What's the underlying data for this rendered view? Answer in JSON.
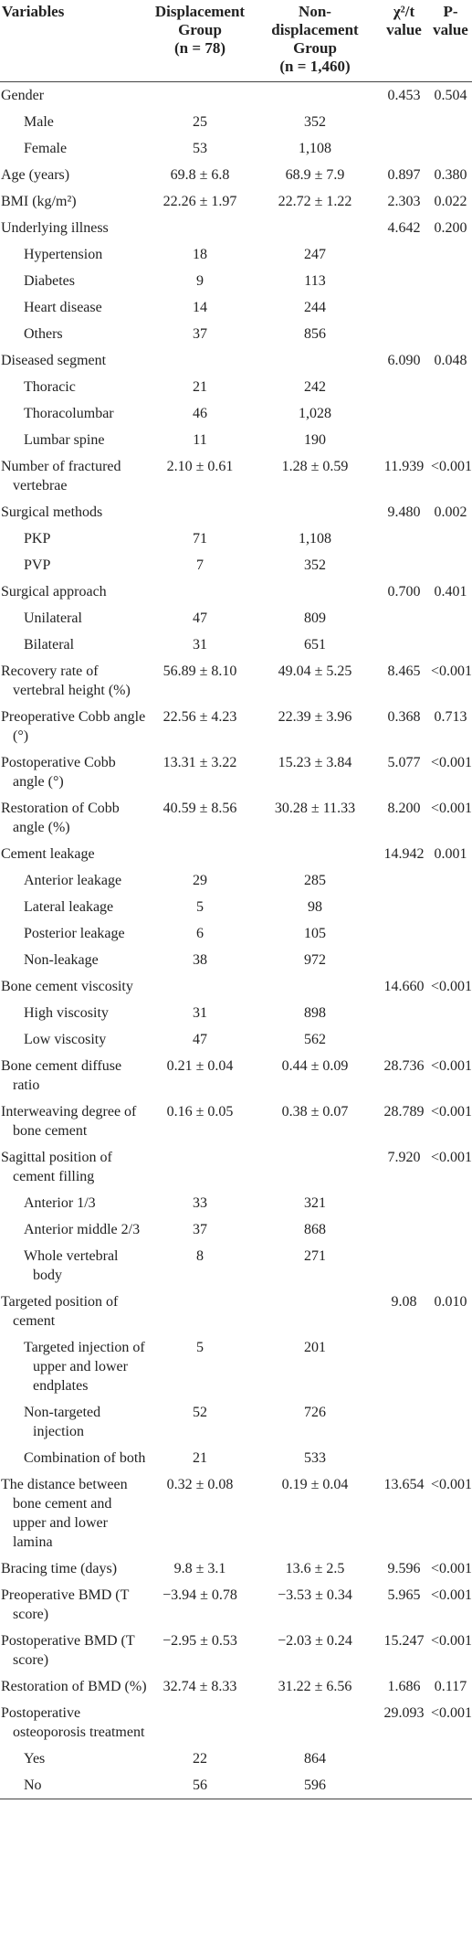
{
  "table": {
    "header": {
      "variables": [
        "Variables"
      ],
      "displacement": [
        "Displacement",
        "Group",
        "(n = 78)"
      ],
      "non_displacement": [
        "Non-",
        "displacement",
        "Group",
        "(n = 1,460)"
      ],
      "statistic": [
        "χ²/t",
        "value"
      ],
      "p_value": [
        "P-value"
      ]
    },
    "rows": [
      {
        "label": "Gender",
        "statistic": "0.453",
        "p_value": "0.504",
        "levels": [
          {
            "label": "Male",
            "displacement": "25",
            "non_displacement": "352"
          },
          {
            "label": "Female",
            "displacement": "53",
            "non_displacement": "1,108"
          }
        ]
      },
      {
        "label": "Age (years)",
        "displacement": "69.8 ± 6.8",
        "non_displacement": "68.9 ± 7.9",
        "statistic": "0.897",
        "p_value": "0.380"
      },
      {
        "label": "BMI (kg/m²)",
        "displacement": "22.26 ± 1.97",
        "non_displacement": "22.72 ± 1.22",
        "statistic": "2.303",
        "p_value": "0.022"
      },
      {
        "label": "Underlying illness",
        "statistic": "4.642",
        "p_value": "0.200",
        "levels": [
          {
            "label": "Hypertension",
            "displacement": "18",
            "non_displacement": "247"
          },
          {
            "label": "Diabetes",
            "displacement": "9",
            "non_displacement": "113"
          },
          {
            "label": "Heart disease",
            "displacement": "14",
            "non_displacement": "244"
          },
          {
            "label": "Others",
            "displacement": "37",
            "non_displacement": "856"
          }
        ]
      },
      {
        "label": "Diseased segment",
        "statistic": "6.090",
        "p_value": "0.048",
        "levels": [
          {
            "label": "Thoracic",
            "displacement": "21",
            "non_displacement": "242"
          },
          {
            "label": "Thoracolumbar",
            "displacement": "46",
            "non_displacement": "1,028"
          },
          {
            "label": "Lumbar spine",
            "displacement": "11",
            "non_displacement": "190"
          }
        ]
      },
      {
        "label": "Number of fractured vertebrae",
        "displacement": "2.10 ± 0.61",
        "non_displacement": "1.28 ± 0.59",
        "statistic": "11.939",
        "p_value": "<0.001"
      },
      {
        "label": "Surgical methods",
        "statistic": "9.480",
        "p_value": "0.002",
        "levels": [
          {
            "label": "PKP",
            "displacement": "71",
            "non_displacement": "1,108"
          },
          {
            "label": "PVP",
            "displacement": "7",
            "non_displacement": "352"
          }
        ]
      },
      {
        "label": "Surgical approach",
        "statistic": "0.700",
        "p_value": "0.401",
        "levels": [
          {
            "label": "Unilateral",
            "displacement": "47",
            "non_displacement": "809"
          },
          {
            "label": "Bilateral",
            "displacement": "31",
            "non_displacement": "651"
          }
        ]
      },
      {
        "label": "Recovery rate of vertebral height (%)",
        "displacement": "56.89 ± 8.10",
        "non_displacement": "49.04 ± 5.25",
        "statistic": "8.465",
        "p_value": "<0.001"
      },
      {
        "label": "Preoperative Cobb angle (°)",
        "displacement": "22.56 ± 4.23",
        "non_displacement": "22.39 ± 3.96",
        "statistic": "0.368",
        "p_value": "0.713"
      },
      {
        "label": "Postoperative Cobb angle (°)",
        "displacement": "13.31 ± 3.22",
        "non_displacement": "15.23 ± 3.84",
        "statistic": "5.077",
        "p_value": "<0.001"
      },
      {
        "label": "Restoration of Cobb angle (%)",
        "displacement": "40.59 ± 8.56",
        "non_displacement": "30.28 ± 11.33",
        "statistic": "8.200",
        "p_value": "<0.001"
      },
      {
        "label": "Cement leakage",
        "statistic": "14.942",
        "p_value": "0.001",
        "levels": [
          {
            "label": "Anterior leakage",
            "displacement": "29",
            "non_displacement": "285"
          },
          {
            "label": "Lateral leakage",
            "displacement": "5",
            "non_displacement": "98"
          },
          {
            "label": "Posterior leakage",
            "displacement": "6",
            "non_displacement": "105"
          },
          {
            "label": "Non-leakage",
            "displacement": "38",
            "non_displacement": "972"
          }
        ]
      },
      {
        "label": "Bone cement viscosity",
        "statistic": "14.660",
        "p_value": "<0.001",
        "levels": [
          {
            "label": "High viscosity",
            "displacement": "31",
            "non_displacement": "898"
          },
          {
            "label": "Low viscosity",
            "displacement": "47",
            "non_displacement": "562"
          }
        ]
      },
      {
        "label": "Bone cement diffuse ratio",
        "displacement": "0.21 ± 0.04",
        "non_displacement": "0.44 ± 0.09",
        "statistic": "28.736",
        "p_value": "<0.001"
      },
      {
        "label": "Interweaving degree of bone cement",
        "displacement": "0.16 ± 0.05",
        "non_displacement": "0.38 ± 0.07",
        "statistic": "28.789",
        "p_value": "<0.001"
      },
      {
        "label": "Sagittal position of cement filling",
        "statistic": "7.920",
        "p_value": "<0.001",
        "levels": [
          {
            "label": "Anterior 1/3",
            "displacement": "33",
            "non_displacement": "321"
          },
          {
            "label": "Anterior middle 2/3",
            "displacement": "37",
            "non_displacement": "868"
          },
          {
            "label": "Whole vertebral body",
            "displacement": "8",
            "non_displacement": "271"
          }
        ]
      },
      {
        "label": "Targeted position of cement",
        "statistic": "9.08",
        "p_value": "0.010",
        "levels": [
          {
            "label": "Targeted injection of upper and lower endplates",
            "displacement": "5",
            "non_displacement": "201"
          },
          {
            "label": "Non-targeted injection",
            "displacement": "52",
            "non_displacement": "726"
          },
          {
            "label": "Combination of both",
            "displacement": "21",
            "non_displacement": "533"
          }
        ]
      },
      {
        "label": "The distance between bone cement and upper and lower lamina",
        "displacement": "0.32 ± 0.08",
        "non_displacement": "0.19 ± 0.04",
        "statistic": "13.654",
        "p_value": "<0.001"
      },
      {
        "label": "Bracing time (days)",
        "displacement": "9.8 ± 3.1",
        "non_displacement": "13.6 ± 2.5",
        "statistic": "9.596",
        "p_value": "<0.001"
      },
      {
        "label": "Preoperative BMD (T score)",
        "displacement": "−3.94 ± 0.78",
        "non_displacement": "−3.53 ± 0.34",
        "statistic": "5.965",
        "p_value": "<0.001"
      },
      {
        "label": "Postoperative BMD (T score)",
        "displacement": "−2.95 ± 0.53",
        "non_displacement": "−2.03 ± 0.24",
        "statistic": "15.247",
        "p_value": "<0.001"
      },
      {
        "label": "Restoration of BMD (%)",
        "displacement": "32.74 ± 8.33",
        "non_displacement": "31.22 ± 6.56",
        "statistic": "1.686",
        "p_value": "0.117"
      },
      {
        "label": "Postoperative osteoporosis treatment",
        "statistic": "29.093",
        "p_value": "<0.001",
        "levels": [
          {
            "label": "Yes",
            "displacement": "22",
            "non_displacement": "864"
          },
          {
            "label": "No",
            "displacement": "56",
            "non_displacement": "596"
          }
        ]
      }
    ]
  }
}
